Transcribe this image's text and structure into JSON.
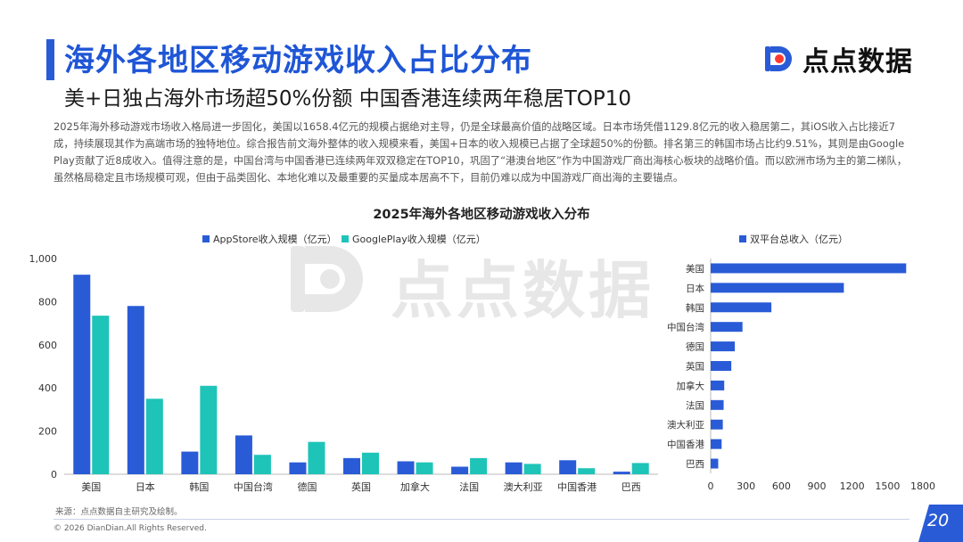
{
  "header": {
    "title": "海外各地区移动游戏收入占比分布",
    "subtitle": "美+日独占海外市场超50%份额 中国香港连续两年稳居TOP10",
    "logo_text": "点点数据",
    "brand_color": "#2a5bd7"
  },
  "description": "2025年海外移动游戏市场收入格局进一步固化，美国以1658.4亿元的规模占据绝对主导，仍是全球最高价值的战略区域。日本市场凭借1129.8亿元的收入稳居第二，其iOS收入占比接近7成，持续展现其作为高端市场的独特地位。综合报告前文海外整体的收入规模来看，美国+日本的收入规模已占据了全球超50%的份额。排名第三的韩国市场占比约9.51%，其则是由Google Play贡献了近8成收入。值得注意的是，中国台湾与中国香港已连续两年双双稳定在TOP10，巩固了“港澳台地区”作为中国游戏厂商出海核心板块的战略价值。而以欧洲市场为主的第二梯队，虽然格局稳定且市场规模可观，但由于品类固化、本地化难以及最重要的买量成本居高不下，目前仍难以成为中国游戏厂商出海的主要锚点。",
  "watermark_text": "点点数据",
  "chart_data": [
    {
      "type": "bar",
      "title": "2025年海外各地区移动游戏收入分布",
      "categories": [
        "美国",
        "日本",
        "韩国",
        "中国台湾",
        "德国",
        "英国",
        "加拿大",
        "法国",
        "澳大利亚",
        "中国香港",
        "巴西"
      ],
      "series": [
        {
          "name": "AppStore收入规模（亿元）",
          "color": "#2a5bd7",
          "values": [
            925,
            780,
            105,
            180,
            55,
            75,
            60,
            35,
            55,
            65,
            12
          ]
        },
        {
          "name": "GooglePlay收入规模（亿元）",
          "color": "#1ec4b8",
          "values": [
            735,
            350,
            410,
            90,
            150,
            100,
            55,
            75,
            48,
            28,
            52
          ]
        }
      ],
      "ylim": [
        0,
        1000
      ],
      "yticks": [
        "0",
        "200",
        "400",
        "600",
        "800",
        "1,000"
      ],
      "legend": "top"
    },
    {
      "type": "bar",
      "orientation": "horizontal",
      "categories": [
        "美国",
        "日本",
        "韩国",
        "中国台湾",
        "德国",
        "英国",
        "加拿大",
        "法国",
        "澳大利亚",
        "中国香港",
        "巴西"
      ],
      "series": [
        {
          "name": "双平台总收入（亿元）",
          "color": "#2a5bd7",
          "values": [
            1658.4,
            1129.8,
            515,
            270,
            205,
            175,
            115,
            110,
            103,
            93,
            64
          ]
        }
      ],
      "xlim": [
        0,
        1800
      ],
      "xticks": [
        "0",
        "300",
        "600",
        "900",
        "1200",
        "1500",
        "1800"
      ],
      "legend": "top"
    }
  ],
  "footer": {
    "source": "来源：点点数据自主研究及绘制。",
    "copyright": "© 2026 DianDian.All Rights Reserved.",
    "page": "20"
  }
}
